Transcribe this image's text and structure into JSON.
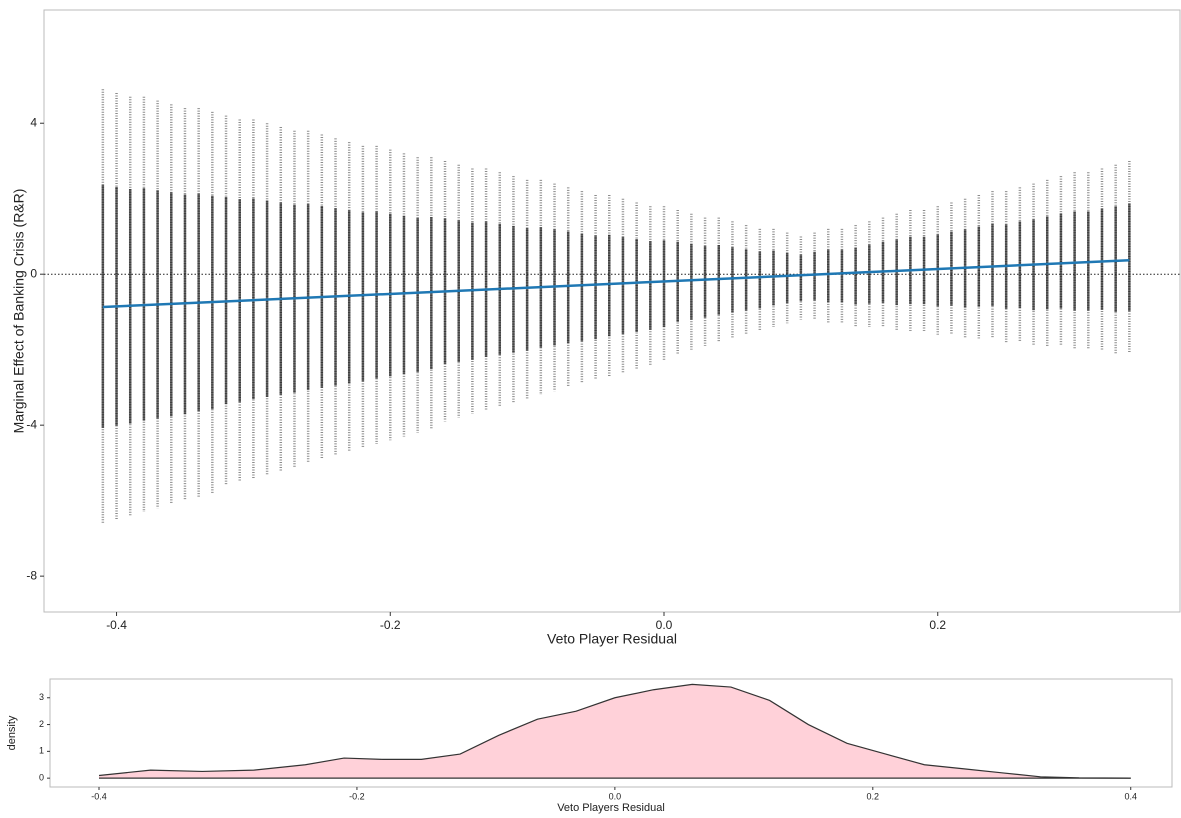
{
  "chart_data": [
    {
      "type": "strip",
      "x_label": "Veto Player Residual",
      "y_label": "Marginal Effect of Banking Crisis (R&R)",
      "x": [
        -0.41,
        -0.4,
        -0.39,
        -0.38,
        -0.37,
        -0.36,
        -0.35,
        -0.34,
        -0.33,
        -0.32,
        -0.31,
        -0.3,
        -0.29,
        -0.28,
        -0.27,
        -0.26,
        -0.25,
        -0.24,
        -0.23,
        -0.22,
        -0.21,
        -0.2,
        -0.19,
        -0.18,
        -0.17,
        -0.16,
        -0.15,
        -0.14,
        -0.13,
        -0.12,
        -0.11,
        -0.1,
        -0.09,
        -0.08,
        -0.07,
        -0.06,
        -0.05,
        -0.04,
        -0.03,
        -0.02,
        -0.01,
        0,
        0.01,
        0.02,
        0.03,
        0.04,
        0.05,
        0.06,
        0.07,
        0.08,
        0.09,
        0.1,
        0.11,
        0.12,
        0.13,
        0.14,
        0.15,
        0.16,
        0.17,
        0.18,
        0.19,
        0.2,
        0.21,
        0.22,
        0.23,
        0.24,
        0.25,
        0.26,
        0.27,
        0.28,
        0.29,
        0.3,
        0.31,
        0.32,
        0.33,
        0.34
      ],
      "upper": [
        4.9,
        4.8,
        4.7,
        4.7,
        4.6,
        4.5,
        4.4,
        4.4,
        4.3,
        4.2,
        4.1,
        4.1,
        4.0,
        3.9,
        3.8,
        3.8,
        3.7,
        3.6,
        3.5,
        3.4,
        3.4,
        3.3,
        3.2,
        3.1,
        3.1,
        3.0,
        2.9,
        2.8,
        2.8,
        2.7,
        2.6,
        2.5,
        2.5,
        2.4,
        2.3,
        2.2,
        2.1,
        2.1,
        2.0,
        1.9,
        1.8,
        1.8,
        1.7,
        1.6,
        1.5,
        1.5,
        1.4,
        1.3,
        1.2,
        1.2,
        1.1,
        1.0,
        1.1,
        1.2,
        1.2,
        1.3,
        1.4,
        1.5,
        1.6,
        1.7,
        1.7,
        1.8,
        1.9,
        2.0,
        2.1,
        2.2,
        2.2,
        2.3,
        2.4,
        2.5,
        2.6,
        2.7,
        2.7,
        2.8,
        2.9,
        3.0
      ],
      "lower": [
        -6.6,
        -6.5,
        -6.4,
        -6.3,
        -6.2,
        -6.1,
        -6.0,
        -5.9,
        -5.8,
        -5.6,
        -5.5,
        -5.4,
        -5.3,
        -5.2,
        -5.1,
        -5.0,
        -4.9,
        -4.8,
        -4.7,
        -4.6,
        -4.5,
        -4.4,
        -4.3,
        -4.2,
        -4.1,
        -3.9,
        -3.8,
        -3.7,
        -3.6,
        -3.5,
        -3.4,
        -3.3,
        -3.2,
        -3.1,
        -3.0,
        -2.9,
        -2.8,
        -2.7,
        -2.6,
        -2.5,
        -2.4,
        -2.3,
        -2.1,
        -2.0,
        -1.9,
        -1.8,
        -1.7,
        -1.6,
        -1.5,
        -1.4,
        -1.3,
        -1.2,
        -1.2,
        -1.3,
        -1.3,
        -1.4,
        -1.4,
        -1.4,
        -1.5,
        -1.5,
        -1.5,
        -1.6,
        -1.6,
        -1.7,
        -1.7,
        -1.7,
        -1.8,
        -1.8,
        -1.9,
        -1.9,
        -1.9,
        -2.0,
        -2.0,
        -2.0,
        -2.1,
        -2.1
      ],
      "color": "#000000",
      "line": {
        "x": [
          -0.41,
          0.34
        ],
        "values": [
          -0.87,
          0.37
        ],
        "color": "#1f78b4"
      },
      "hline": 0,
      "xlim": [
        -0.453,
        0.377
      ],
      "ylim": [
        -8.95,
        7.0
      ],
      "xticks": [
        -0.4,
        -0.2,
        {
          "value": 0,
          "label": "0.0"
        },
        0.2
      ],
      "yticks": [
        -8,
        -4,
        0,
        4
      ]
    },
    {
      "type": "area",
      "x_label": "Veto Players Residual",
      "y_label": "density",
      "x": [
        -0.4,
        -0.36,
        -0.32,
        -0.28,
        -0.24,
        -0.21,
        -0.18,
        -0.15,
        -0.12,
        -0.09,
        -0.06,
        -0.03,
        0,
        0.03,
        0.06,
        0.09,
        0.12,
        0.15,
        0.18,
        0.21,
        0.24,
        0.27,
        0.3,
        0.33,
        0.36,
        0.4
      ],
      "values": [
        0.1,
        0.3,
        0.25,
        0.3,
        0.5,
        0.75,
        0.7,
        0.7,
        0.9,
        1.6,
        2.2,
        2.5,
        3.0,
        3.3,
        3.5,
        3.4,
        2.9,
        2.0,
        1.3,
        0.9,
        0.5,
        0.35,
        0.2,
        0.05,
        0.01,
        0.0
      ],
      "color": "#ffd1d9",
      "xlim": [
        -0.438,
        0.432
      ],
      "ylim": [
        -0.33,
        3.7
      ],
      "xticks": [
        -0.4,
        -0.2,
        {
          "value": 0,
          "label": "0.0"
        },
        0.2,
        0.4
      ],
      "yticks": [
        0,
        1,
        2,
        3
      ]
    }
  ]
}
